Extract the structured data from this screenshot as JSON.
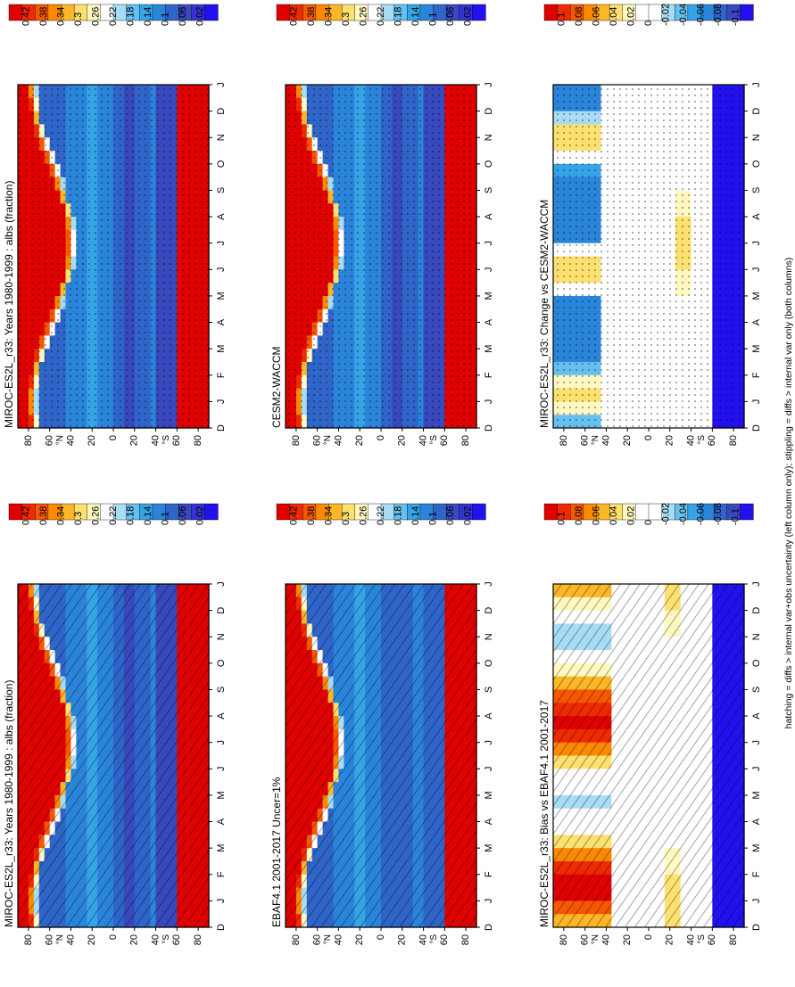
{
  "footnote": "hatching = diffs > internal var+obs uncertainty (left column only); stippling = diffs > internal var only (both columns)",
  "colorbars": {
    "absolute": {
      "labels": [
        "0.42",
        "0.38",
        "0.34",
        "0.3",
        "0.26",
        "0.22",
        "0.18",
        "0.14",
        "0.1",
        "0.06",
        "0.02"
      ],
      "colors": [
        "#e00000",
        "#ee2a00",
        "#f65800",
        "#fb8a00",
        "#fdb628",
        "#fee070",
        "#fff8c0",
        "#ffffff",
        "#a8dcf5",
        "#66c0ee",
        "#35a4e6",
        "#2a84da",
        "#2f64c8",
        "#3848bd",
        "#3632d2",
        "#2211ee"
      ]
    },
    "difference": {
      "labels": [
        "0.1",
        "0.08",
        "0.06",
        "0.04",
        "0.02",
        "0",
        "-0.02",
        "-0.04",
        "-0.06",
        "-0.08",
        "-0.1"
      ],
      "colors": [
        "#e00000",
        "#ee2a00",
        "#f65800",
        "#fb8a00",
        "#fdb628",
        "#fee070",
        "#fff8c0",
        "#ffffff",
        "#ffffff",
        "#a8dcf5",
        "#66c0ee",
        "#35a4e6",
        "#2a84da",
        "#2f64c8",
        "#3848bd",
        "#2211ee"
      ]
    }
  },
  "axes": {
    "month_ticks": [
      "D",
      "J",
      "F",
      "M",
      "A",
      "M",
      "J",
      "J",
      "A",
      "S",
      "O",
      "N",
      "D",
      "J"
    ],
    "lat_ticks": [
      "80",
      "60",
      "40",
      "20",
      "0",
      "20",
      "40",
      "60",
      "80"
    ],
    "lat_hemisphere_labels": {
      "north": "°N",
      "south": "°S"
    }
  },
  "chart_data": [
    {
      "type": "heatmap",
      "title": "MIROC-ES2L_r33: Years 1980-1999 : albs (fraction)",
      "colorbar": "absolute",
      "overlay": "hatch",
      "variant": "model"
    },
    {
      "type": "heatmap",
      "title": "EBAF4.1 2001-2017 Uncer=1%",
      "colorbar": "absolute",
      "overlay": "hatch",
      "variant": "obs"
    },
    {
      "type": "heatmap",
      "title": "MIROC-ES2L_r33: Bias vs EBAF4.1 2001-2017",
      "colorbar": "difference",
      "overlay": "hatch",
      "variant": "bias"
    },
    {
      "type": "heatmap",
      "title": "MIROC-ES2L_r33: Years 1980-1999 : albs (fraction)",
      "colorbar": "absolute",
      "overlay": "stipple",
      "variant": "model"
    },
    {
      "type": "heatmap",
      "title": "CESM2-WACCM",
      "colorbar": "absolute",
      "overlay": "stipple",
      "variant": "model2"
    },
    {
      "type": "heatmap",
      "title": "MIROC-ES2L_r33: Change vs CESM2-WACCM",
      "colorbar": "difference",
      "overlay": "stipple",
      "variant": "change"
    }
  ]
}
